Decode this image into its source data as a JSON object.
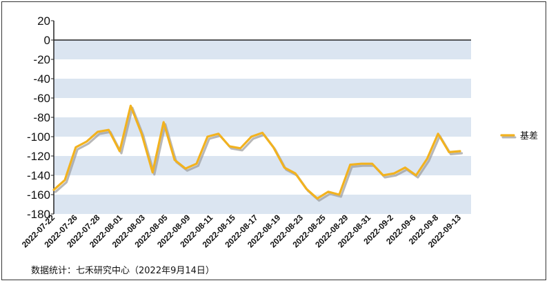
{
  "chart_data": {
    "type": "line",
    "title": "",
    "xlabel": "",
    "ylabel": "",
    "ylim": [
      -180,
      20
    ],
    "yticks": [
      20,
      0,
      -20,
      -40,
      -60,
      -80,
      -100,
      -120,
      -140,
      -160,
      -180
    ],
    "grid": "alternating horizontal bands",
    "legend_position": "right",
    "x_tick_labels": [
      "2022-07-22",
      "2022-07-26",
      "2022-07-28",
      "2022-08-01",
      "2022-08-03",
      "2022-08-05",
      "2022-08-09",
      "2022-08-11",
      "2022-08-15",
      "2022-08-17",
      "2022-08-19",
      "2022-08-23",
      "2022-08-25",
      "2022-08-29",
      "2022-08-31",
      "2022-09-2",
      "2022-09-6",
      "2022-09-8",
      "2022-09-13"
    ],
    "series": [
      {
        "name": "基差",
        "color": "#f2b21f",
        "values": [
          -155,
          -145,
          -111,
          -105,
          -95,
          -93,
          -115,
          -68,
          -97,
          -137,
          -85,
          -124,
          -133,
          -128,
          -100,
          -97,
          -110,
          -112,
          -100,
          -96,
          -111,
          -132,
          -138,
          -154,
          -164,
          -157,
          -160,
          -129,
          -128,
          -128,
          -140,
          -138,
          -132,
          -140,
          -123,
          -97,
          -116,
          -115
        ]
      }
    ]
  },
  "source_text": "数据统计：七禾研究中心（2022年9月14日）",
  "colors": {
    "band": "#dbe5f1",
    "line": "#f2b21f",
    "shadow": "#9a9a9a",
    "axis": "#222222"
  }
}
